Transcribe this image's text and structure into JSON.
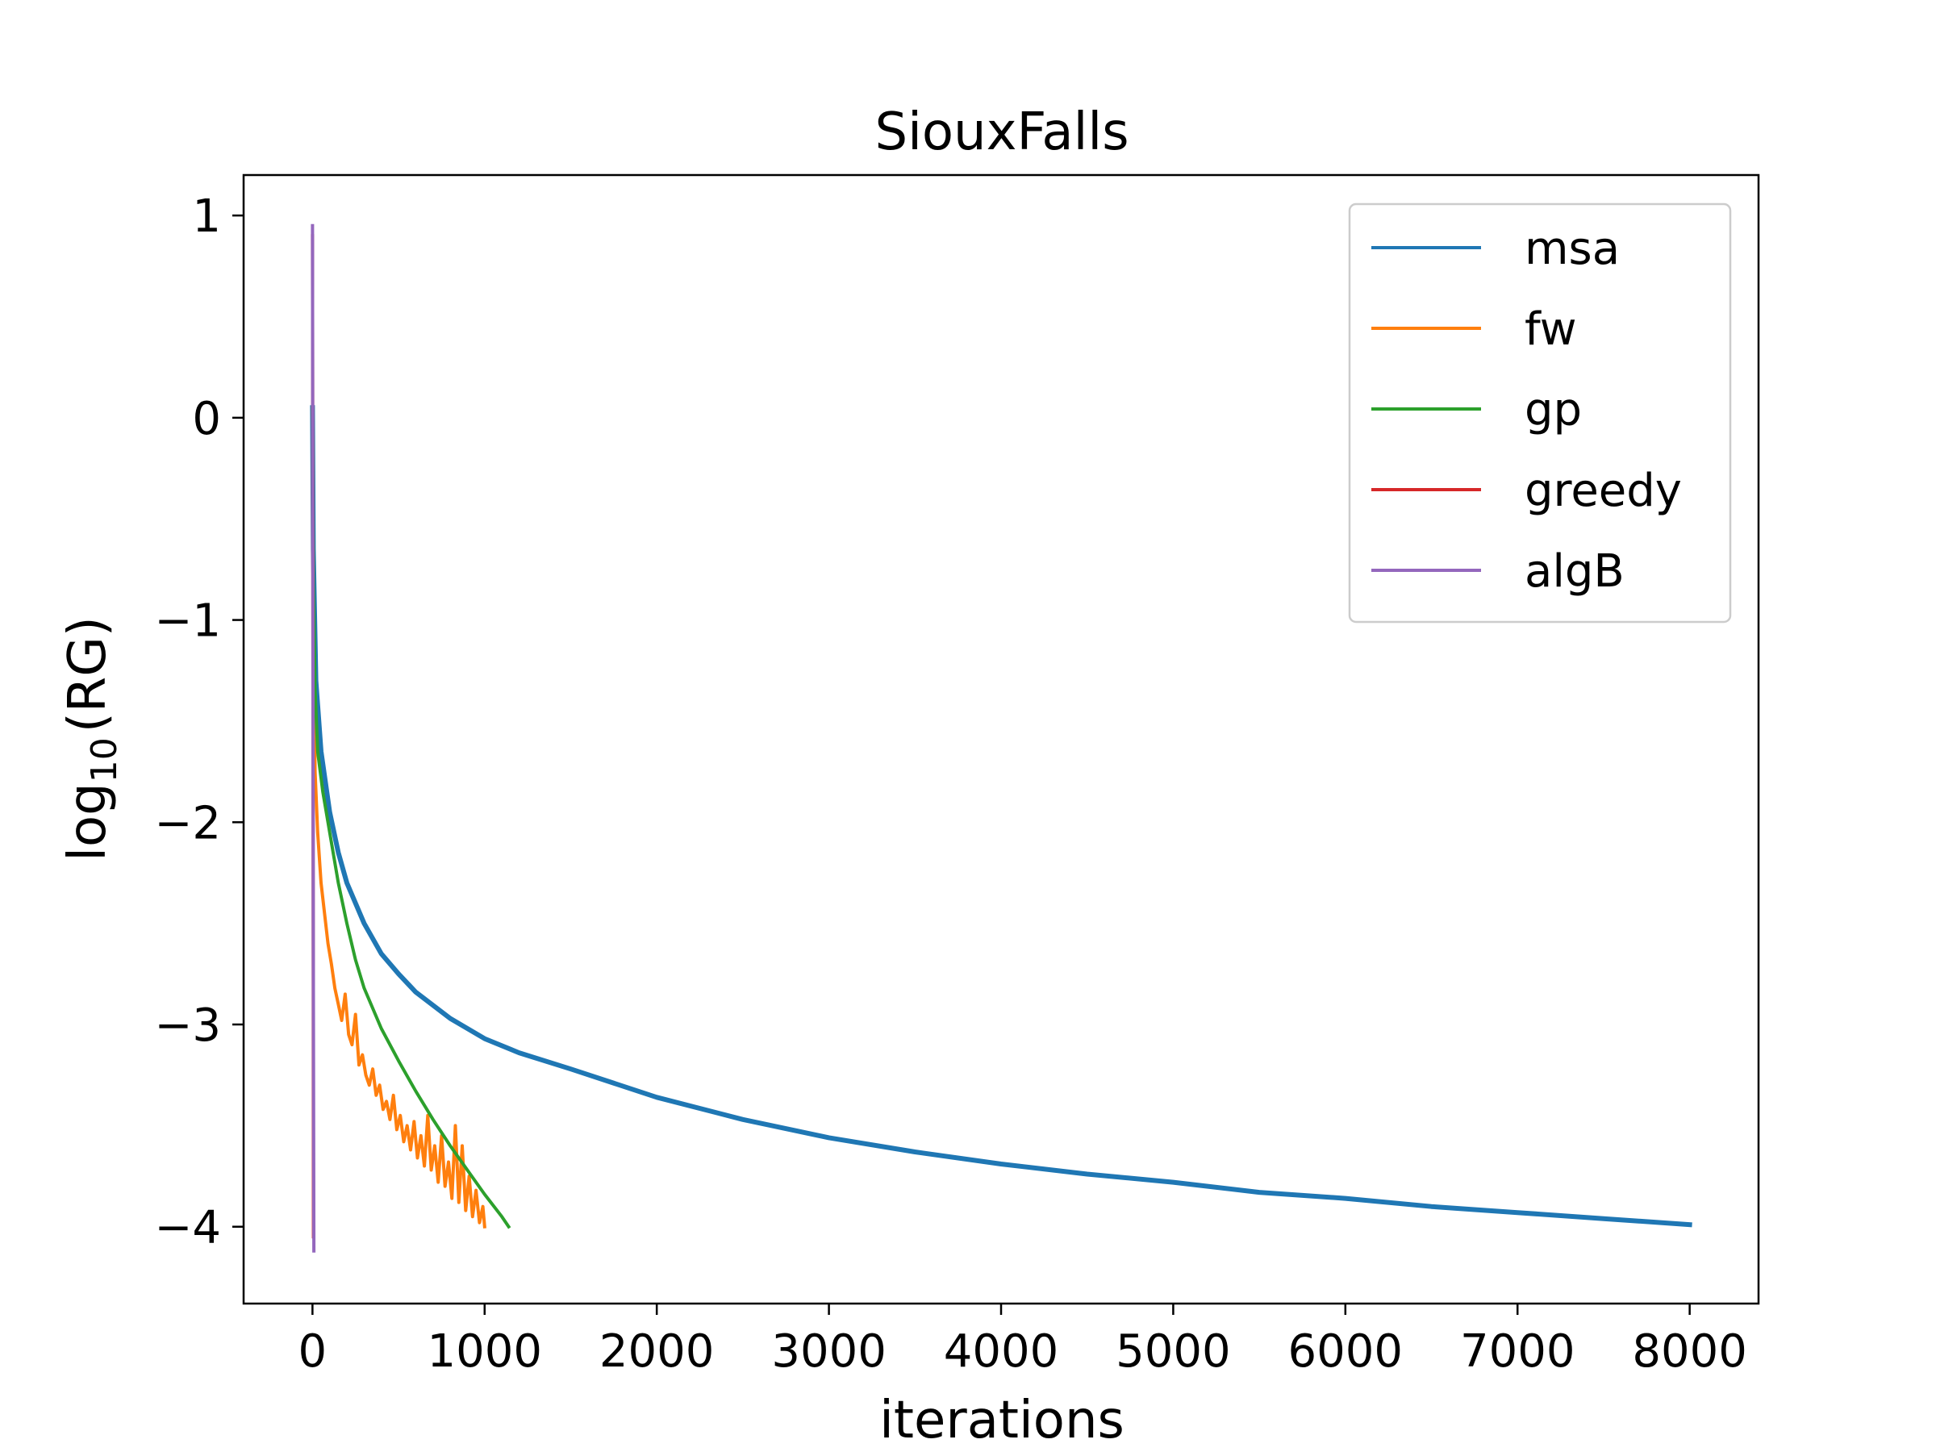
{
  "chart_data": {
    "type": "line",
    "title": "SiouxFalls",
    "xlabel": "iterations",
    "ylabel_main": "log",
    "ylabel_sub": "10",
    "ylabel_tail": "(RG)",
    "xlim": [
      -400,
      8400
    ],
    "ylim": [
      -4.38,
      1.2
    ],
    "xticks": [
      0,
      1000,
      2000,
      3000,
      4000,
      5000,
      6000,
      7000,
      8000
    ],
    "xtick_labels": [
      "0",
      "1000",
      "2000",
      "3000",
      "4000",
      "5000",
      "6000",
      "7000",
      "8000"
    ],
    "yticks": [
      1,
      0,
      -1,
      -2,
      -3,
      -4
    ],
    "ytick_labels": [
      "1",
      "0",
      "−1",
      "−2",
      "−3",
      "−4"
    ],
    "grid": false,
    "legend_position": "top-right",
    "series": [
      {
        "name": "msa",
        "color": "#1f77b4",
        "points": [
          [
            0,
            0.05
          ],
          [
            5,
            -0.65
          ],
          [
            20,
            -1.3
          ],
          [
            50,
            -1.65
          ],
          [
            100,
            -1.95
          ],
          [
            150,
            -2.15
          ],
          [
            200,
            -2.3
          ],
          [
            300,
            -2.5
          ],
          [
            400,
            -2.65
          ],
          [
            500,
            -2.75
          ],
          [
            600,
            -2.84
          ],
          [
            800,
            -2.97
          ],
          [
            1000,
            -3.07
          ],
          [
            1200,
            -3.14
          ],
          [
            1500,
            -3.22
          ],
          [
            2000,
            -3.36
          ],
          [
            2500,
            -3.47
          ],
          [
            3000,
            -3.56
          ],
          [
            3500,
            -3.63
          ],
          [
            4000,
            -3.69
          ],
          [
            4500,
            -3.74
          ],
          [
            5000,
            -3.78
          ],
          [
            5500,
            -3.83
          ],
          [
            6000,
            -3.86
          ],
          [
            6500,
            -3.9
          ],
          [
            7000,
            -3.93
          ],
          [
            7500,
            -3.96
          ],
          [
            8000,
            -3.99
          ]
        ]
      },
      {
        "name": "fw",
        "color": "#ff7f0e",
        "points": [
          [
            0,
            0.05
          ],
          [
            5,
            -1.0
          ],
          [
            15,
            -1.75
          ],
          [
            30,
            -2.05
          ],
          [
            50,
            -2.3
          ],
          [
            70,
            -2.45
          ],
          [
            90,
            -2.6
          ],
          [
            110,
            -2.7
          ],
          [
            130,
            -2.82
          ],
          [
            150,
            -2.9
          ],
          [
            170,
            -2.98
          ],
          [
            190,
            -2.85
          ],
          [
            210,
            -3.05
          ],
          [
            230,
            -3.1
          ],
          [
            250,
            -2.95
          ],
          [
            270,
            -3.2
          ],
          [
            290,
            -3.15
          ],
          [
            310,
            -3.25
          ],
          [
            330,
            -3.3
          ],
          [
            350,
            -3.22
          ],
          [
            370,
            -3.35
          ],
          [
            390,
            -3.3
          ],
          [
            410,
            -3.42
          ],
          [
            430,
            -3.38
          ],
          [
            450,
            -3.47
          ],
          [
            470,
            -3.35
          ],
          [
            490,
            -3.52
          ],
          [
            510,
            -3.45
          ],
          [
            530,
            -3.58
          ],
          [
            550,
            -3.5
          ],
          [
            570,
            -3.62
          ],
          [
            590,
            -3.48
          ],
          [
            610,
            -3.66
          ],
          [
            630,
            -3.55
          ],
          [
            650,
            -3.7
          ],
          [
            670,
            -3.45
          ],
          [
            690,
            -3.72
          ],
          [
            710,
            -3.6
          ],
          [
            730,
            -3.78
          ],
          [
            750,
            -3.55
          ],
          [
            770,
            -3.8
          ],
          [
            790,
            -3.68
          ],
          [
            810,
            -3.86
          ],
          [
            830,
            -3.5
          ],
          [
            850,
            -3.88
          ],
          [
            870,
            -3.6
          ],
          [
            890,
            -3.92
          ],
          [
            910,
            -3.75
          ],
          [
            930,
            -3.95
          ],
          [
            950,
            -3.82
          ],
          [
            970,
            -3.98
          ],
          [
            990,
            -3.9
          ],
          [
            1000,
            -4.0
          ]
        ]
      },
      {
        "name": "gp",
        "color": "#2ca02c",
        "points": [
          [
            0,
            0.05
          ],
          [
            5,
            -0.8
          ],
          [
            15,
            -1.35
          ],
          [
            30,
            -1.65
          ],
          [
            60,
            -1.85
          ],
          [
            100,
            -2.05
          ],
          [
            150,
            -2.3
          ],
          [
            200,
            -2.5
          ],
          [
            250,
            -2.68
          ],
          [
            300,
            -2.82
          ],
          [
            400,
            -3.02
          ],
          [
            500,
            -3.18
          ],
          [
            600,
            -3.33
          ],
          [
            700,
            -3.47
          ],
          [
            800,
            -3.6
          ],
          [
            900,
            -3.72
          ],
          [
            1000,
            -3.84
          ],
          [
            1100,
            -3.95
          ],
          [
            1140,
            -4.0
          ]
        ]
      },
      {
        "name": "greedy",
        "color": "#d62728",
        "points": [
          [
            0,
            0.9
          ],
          [
            2,
            -0.5
          ],
          [
            4,
            -2.2
          ],
          [
            6,
            -4.05
          ]
        ]
      },
      {
        "name": "algB",
        "color": "#9467bd",
        "points": [
          [
            0,
            0.95
          ],
          [
            2,
            -0.7
          ],
          [
            5,
            -2.6
          ],
          [
            8,
            -4.12
          ]
        ]
      }
    ]
  }
}
